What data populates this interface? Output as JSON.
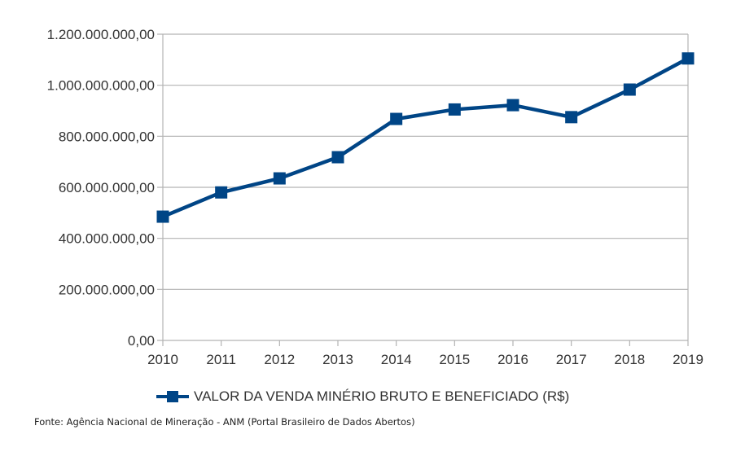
{
  "chart_data": {
    "type": "line",
    "title": "",
    "xlabel": "",
    "ylabel": "",
    "categories": [
      "2010",
      "2011",
      "2012",
      "2013",
      "2014",
      "2015",
      "2016",
      "2017",
      "2018",
      "2019"
    ],
    "series": [
      {
        "name": "VALOR DA VENDA MINÉRIO BRUTO E BENEFICIADO (R$)",
        "values": [
          485000000,
          580000000,
          635000000,
          718000000,
          868000000,
          905000000,
          922000000,
          875000000,
          983000000,
          1105000000
        ],
        "color": "#004586",
        "marker": "square"
      }
    ],
    "ylim": [
      0,
      1200000000
    ],
    "yticks": [
      0,
      200000000,
      400000000,
      600000000,
      800000000,
      1000000000,
      1200000000
    ],
    "ytick_labels": [
      "0,00",
      "200.000.000,00",
      "400.000.000,00",
      "600.000.000,00",
      "800.000.000,00",
      "1.000.000.000,00",
      "1.200.000.000,00"
    ],
    "grid": true,
    "legend_position": "bottom",
    "legend": [
      "VALOR DA VENDA MINÉRIO BRUTO E BENEFICIADO (R$)"
    ]
  },
  "source_note": "Fonte: Agência Nacional de Mineração - ANM (Portal Brasileiro de Dados Abertos)",
  "colors": {
    "series": "#004586",
    "grid": "#b3b3b3",
    "text": "#333333"
  }
}
